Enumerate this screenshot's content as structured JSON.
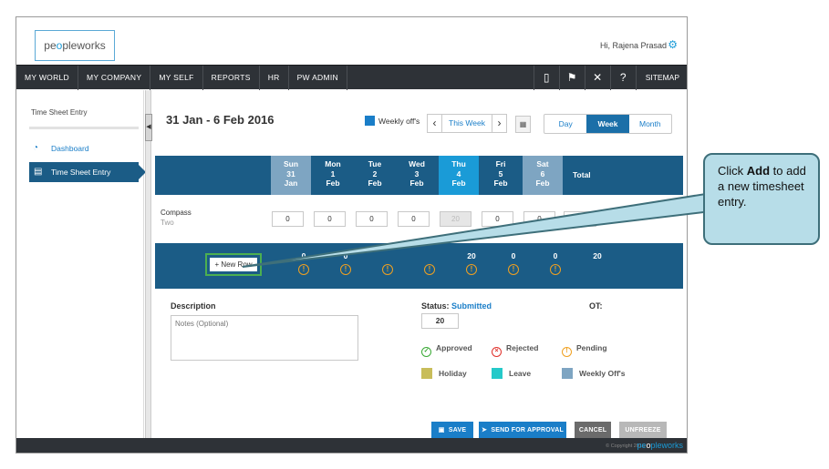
{
  "header": {
    "logo_text_1": "pe",
    "logo_o": "o",
    "logo_text_2": "pleworks",
    "greeting": "Hi, Rajena Prasad"
  },
  "nav": {
    "items": [
      "MY WORLD",
      "MY COMPANY",
      "MY SELF",
      "REPORTS",
      "HR",
      "PW ADMIN"
    ],
    "sitemap": "SITEMAP"
  },
  "sidebar": {
    "title": "Time Sheet Entry",
    "items": [
      {
        "label": "Dashboard",
        "icon": "dashboard-icon"
      },
      {
        "label": "Time Sheet Entry",
        "icon": "timesheet-icon"
      }
    ]
  },
  "toolbar": {
    "date_range": "31 Jan - 6 Feb 2016",
    "weekly_offs": "Weekly off's",
    "this_week": "This Week",
    "views": [
      "Day",
      "Week",
      "Month"
    ],
    "active_view": "Week"
  },
  "days": [
    {
      "day": "Sun",
      "num": "31",
      "month": "Jan",
      "kind": "weekend"
    },
    {
      "day": "Mon",
      "num": "1",
      "month": "Feb",
      "kind": "normal"
    },
    {
      "day": "Tue",
      "num": "2",
      "month": "Feb",
      "kind": "normal"
    },
    {
      "day": "Wed",
      "num": "3",
      "month": "Feb",
      "kind": "normal"
    },
    {
      "day": "Thu",
      "num": "4",
      "month": "Feb",
      "kind": "today"
    },
    {
      "day": "Fri",
      "num": "5",
      "month": "Feb",
      "kind": "normal"
    },
    {
      "day": "Sat",
      "num": "6",
      "month": "Feb",
      "kind": "weekend"
    }
  ],
  "total_label": "Total",
  "project_row": {
    "name": "Compass",
    "sub": "Two",
    "hours": [
      "0",
      "0",
      "0",
      "0",
      "20",
      "0",
      "0"
    ],
    "total": "20"
  },
  "totals_row": {
    "new_row_label": "+  New Row",
    "values": [
      "0",
      "0",
      "",
      "",
      "20",
      "0",
      "0"
    ],
    "total": "20"
  },
  "details": {
    "description_label": "Description",
    "notes_placeholder": "Notes (Optional)",
    "status_label": "Status:",
    "status_value_text": "Submitted",
    "status_hours": "20",
    "ot_label": "OT:"
  },
  "legend": {
    "approved": "Approved",
    "rejected": "Rejected",
    "pending": "Pending",
    "holiday": "Holiday",
    "leave": "Leave",
    "weekly_offs": "Weekly Off's",
    "colors": {
      "approved": "#3aaa35",
      "rejected": "#e0302a",
      "pending": "#f0a020",
      "holiday": "#c8bd5a",
      "leave": "#25c9c9",
      "weekly_offs": "#7ea5c2"
    }
  },
  "actions": {
    "save": "SAVE",
    "send": "SEND FOR APPROVAL",
    "cancel": "CANCEL",
    "unfreeze": "UNFREEZE"
  },
  "footer": {
    "copyright": "© Copyright 2016",
    "logo_text_1": "pe",
    "logo_o": "o",
    "logo_text_2": "pleworks"
  },
  "callout": {
    "pre": "Click ",
    "bold": "Add",
    "post": " to add a new timesheet entry."
  }
}
